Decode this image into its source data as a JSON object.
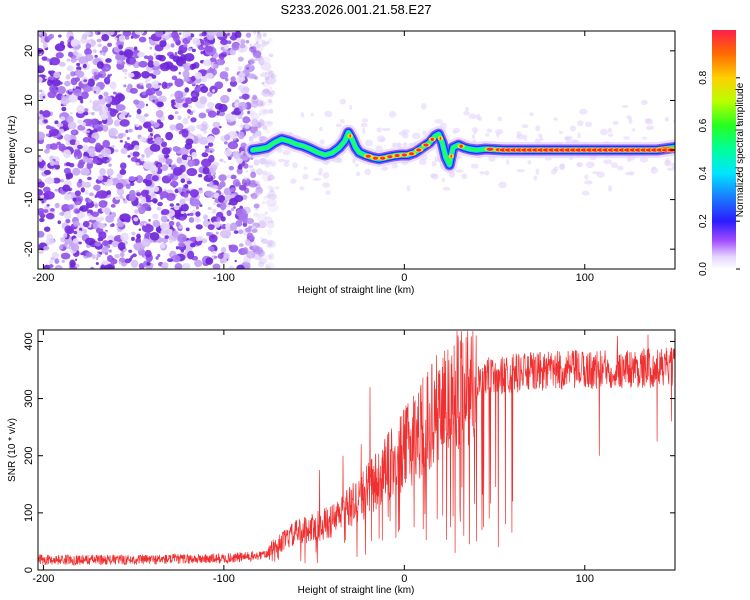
{
  "figure": {
    "title": "S233.2026.001.21.58.E27"
  },
  "chart_data": [
    {
      "type": "heatmap",
      "xlabel": "Height of straight line (km)",
      "ylabel": "Frequency (Hz)",
      "xlim": [
        -203,
        150
      ],
      "ylim": [
        -24,
        24
      ],
      "xticks": [
        -200,
        -100,
        0,
        100
      ],
      "yticks": [
        -20,
        -10,
        0,
        10,
        20
      ],
      "ridge": {
        "x": [
          -84,
          -80,
          -76,
          -72,
          -68,
          -64,
          -60,
          -56,
          -52,
          -48,
          -44,
          -40,
          -36,
          -33,
          -31,
          -29,
          -27,
          -25,
          -22,
          -18,
          -14,
          -10,
          -6,
          -2,
          2,
          6,
          10,
          14,
          17,
          19,
          21,
          23,
          25,
          27,
          30,
          33,
          36,
          40,
          45,
          50,
          55,
          60,
          70,
          80,
          90,
          100,
          110,
          120,
          130,
          140,
          150
        ],
        "y": [
          0.0,
          0.2,
          0.5,
          1.5,
          2.2,
          1.8,
          1.2,
          0.8,
          0.2,
          -0.5,
          -1.0,
          -0.6,
          0.5,
          1.8,
          3.5,
          2.2,
          0.5,
          -0.5,
          -1.0,
          -1.5,
          -1.8,
          -1.5,
          -1.2,
          -1.0,
          -1.0,
          -0.5,
          0.5,
          1.5,
          2.8,
          3.2,
          1.5,
          -1.5,
          -3.0,
          0.5,
          1.0,
          0.5,
          0.2,
          0.0,
          0.2,
          0.1,
          0.0,
          0.0,
          0.0,
          0.0,
          0.0,
          0.0,
          0.0,
          0.0,
          0.0,
          0.0,
          0.5
        ]
      },
      "noise_region": [
        -203,
        -78
      ],
      "colorbar": {
        "label": "Normalized spectral amplitude",
        "range": [
          0,
          1
        ],
        "ticks": [
          0.0,
          0.2,
          0.4,
          0.6,
          0.8
        ],
        "tick_labels": [
          "0.0",
          "0.2",
          "0.4",
          "0.6",
          "0.8"
        ]
      }
    },
    {
      "type": "line",
      "xlabel": "Height of straight line (km)",
      "ylabel": "SNR (10 * v/v)",
      "xlim": [
        -203,
        150
      ],
      "ylim": [
        0,
        420
      ],
      "xticks": [
        -200,
        -100,
        0,
        100
      ],
      "yticks": [
        0,
        100,
        200,
        300,
        400
      ],
      "color": "#f03030",
      "envelope": {
        "x": [
          -203,
          -150,
          -100,
          -80,
          -70,
          -60,
          -50,
          -40,
          -30,
          -20,
          -10,
          0,
          10,
          20,
          30,
          40,
          50,
          60,
          80,
          100,
          120,
          150
        ],
        "y": [
          18,
          18,
          20,
          25,
          45,
          65,
          75,
          85,
          110,
          140,
          175,
          210,
          250,
          290,
          320,
          335,
          340,
          345,
          348,
          350,
          352,
          355
        ]
      },
      "spikes": [
        {
          "x": -19,
          "y": 320
        },
        {
          "x": -34,
          "y": 200
        },
        {
          "x": -47,
          "y": 175
        },
        {
          "x": -24,
          "y": 220
        },
        {
          "x": 5,
          "y": 305
        },
        {
          "x": 118,
          "y": 410
        },
        {
          "x": 135,
          "y": 412
        }
      ],
      "dips": [
        {
          "x": 28,
          "y": 30
        },
        {
          "x": 33,
          "y": 60
        },
        {
          "x": 36,
          "y": 45
        },
        {
          "x": 40,
          "y": 50
        },
        {
          "x": 43,
          "y": 70
        },
        {
          "x": 47,
          "y": 90
        },
        {
          "x": 52,
          "y": 40
        },
        {
          "x": 56,
          "y": 80
        },
        {
          "x": 60,
          "y": 120
        },
        {
          "x": 108,
          "y": 200
        },
        {
          "x": 140,
          "y": 225
        },
        {
          "x": 148,
          "y": 260
        }
      ]
    }
  ]
}
